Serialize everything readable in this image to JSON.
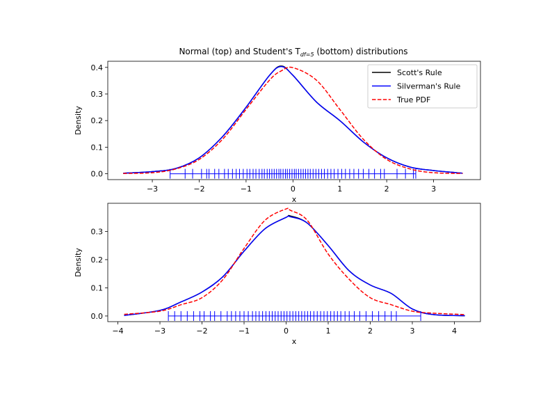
{
  "title": {
    "prefix": "Normal (top) and Student's T",
    "subscript": "df=5",
    "suffix": " (bottom) distributions"
  },
  "legend": {
    "items": [
      {
        "label": "Scott's Rule",
        "color": "#000000",
        "dash": false
      },
      {
        "label": "Silverman's Rule",
        "color": "#0000ff",
        "dash": false
      },
      {
        "label": "True PDF",
        "color": "#ff0000",
        "dash": true
      }
    ]
  },
  "chart_data": [
    {
      "type": "line",
      "panel": "top",
      "xlabel": "x",
      "ylabel": "Density",
      "xlim": [
        -3.95,
        4.0
      ],
      "ylim": [
        -0.022,
        0.423
      ],
      "xticks": [
        -3,
        -2,
        -1,
        0,
        1,
        2,
        3
      ],
      "xtick_labels": [
        "−3",
        "−2",
        "−1",
        "0",
        "1",
        "2",
        "3"
      ],
      "yticks": [
        0.0,
        0.1,
        0.2,
        0.3,
        0.4
      ],
      "ytick_labels": [
        "0.0",
        "0.1",
        "0.2",
        "0.3",
        "0.4"
      ],
      "legend_position": "top-right",
      "x": [
        -3.62,
        -3.0,
        -2.5,
        -2.0,
        -1.5,
        -1.0,
        -0.5,
        -0.25,
        0.0,
        0.5,
        1.0,
        1.5,
        2.0,
        2.5,
        3.0,
        3.62
      ],
      "series": [
        {
          "name": "Scott's Rule",
          "color": "#000000",
          "values": [
            0.002,
            0.008,
            0.02,
            0.06,
            0.14,
            0.25,
            0.37,
            0.405,
            0.37,
            0.27,
            0.2,
            0.12,
            0.06,
            0.025,
            0.012,
            0.002
          ]
        },
        {
          "name": "Silverman's Rule",
          "color": "#0000ff",
          "values": [
            0.002,
            0.008,
            0.02,
            0.06,
            0.14,
            0.25,
            0.37,
            0.403,
            0.37,
            0.27,
            0.2,
            0.12,
            0.06,
            0.025,
            0.012,
            0.002
          ]
        },
        {
          "name": "True PDF",
          "color": "#ff0000",
          "dash": true,
          "values": [
            0.001,
            0.004,
            0.018,
            0.054,
            0.13,
            0.242,
            0.352,
            0.387,
            0.399,
            0.352,
            0.242,
            0.13,
            0.054,
            0.018,
            0.004,
            0.001
          ]
        }
      ],
      "rug": [
        -2.62,
        -2.3,
        -2.14,
        -1.95,
        -1.84,
        -1.79,
        -1.67,
        -1.58,
        -1.46,
        -1.38,
        -1.29,
        -1.21,
        -1.14,
        -1.06,
        -0.98,
        -0.92,
        -0.85,
        -0.79,
        -0.72,
        -0.66,
        -0.61,
        -0.55,
        -0.5,
        -0.45,
        -0.4,
        -0.35,
        -0.3,
        -0.26,
        -0.21,
        -0.16,
        -0.12,
        -0.07,
        -0.02,
        0.03,
        0.07,
        0.12,
        0.17,
        0.22,
        0.27,
        0.32,
        0.37,
        0.43,
        0.49,
        0.55,
        0.61,
        0.67,
        0.74,
        0.81,
        0.88,
        0.96,
        1.04,
        1.12,
        1.21,
        1.3,
        1.4,
        1.5,
        1.62,
        1.74,
        1.87,
        1.95,
        2.22,
        2.4,
        2.57,
        2.62
      ]
    },
    {
      "type": "line",
      "panel": "bottom",
      "xlabel": "x",
      "ylabel": "Density",
      "xlim": [
        -4.24,
        4.62
      ],
      "ylim": [
        -0.02,
        0.4
      ],
      "xticks": [
        -4,
        -3,
        -2,
        -1,
        0,
        1,
        2,
        3,
        4
      ],
      "xtick_labels": [
        "−4",
        "−3",
        "−2",
        "−1",
        "0",
        "1",
        "2",
        "3",
        "4"
      ],
      "yticks": [
        0.0,
        0.1,
        0.2,
        0.3
      ],
      "ytick_labels": [
        "0.0",
        "0.1",
        "0.2",
        "0.3"
      ],
      "x": [
        -3.85,
        -3.0,
        -2.5,
        -2.0,
        -1.5,
        -1.0,
        -0.5,
        0.0,
        0.1,
        0.5,
        1.0,
        1.5,
        2.0,
        2.5,
        3.0,
        3.5,
        4.25
      ],
      "series": [
        {
          "name": "Scott's Rule",
          "color": "#000000",
          "values": [
            0.002,
            0.02,
            0.05,
            0.085,
            0.14,
            0.23,
            0.31,
            0.35,
            0.355,
            0.33,
            0.25,
            0.16,
            0.11,
            0.08,
            0.025,
            0.005,
            0.001
          ]
        },
        {
          "name": "Silverman's Rule",
          "color": "#0000ff",
          "values": [
            0.002,
            0.02,
            0.05,
            0.085,
            0.14,
            0.23,
            0.31,
            0.35,
            0.352,
            0.33,
            0.25,
            0.16,
            0.11,
            0.08,
            0.025,
            0.005,
            0.001
          ]
        },
        {
          "name": "True PDF",
          "color": "#ff0000",
          "dash": true,
          "values": [
            0.006,
            0.017,
            0.04,
            0.065,
            0.13,
            0.24,
            0.34,
            0.38,
            0.375,
            0.34,
            0.22,
            0.13,
            0.065,
            0.04,
            0.017,
            0.01,
            0.005
          ]
        }
      ],
      "rug": [
        -2.8,
        -2.65,
        -2.5,
        -2.35,
        -2.2,
        -2.05,
        -1.95,
        -1.8,
        -1.7,
        -1.55,
        -1.4,
        -1.3,
        -1.2,
        -1.1,
        -1.0,
        -0.9,
        -0.8,
        -0.72,
        -0.64,
        -0.56,
        -0.48,
        -0.4,
        -0.33,
        -0.26,
        -0.19,
        -0.12,
        -0.05,
        0.02,
        0.09,
        0.16,
        0.23,
        0.3,
        0.37,
        0.44,
        0.51,
        0.58,
        0.66,
        0.74,
        0.82,
        0.9,
        0.98,
        1.06,
        1.14,
        1.22,
        1.3,
        1.4,
        1.5,
        1.62,
        1.75,
        1.9,
        2.05,
        2.2,
        2.35,
        2.5,
        2.62,
        3.2
      ]
    }
  ]
}
